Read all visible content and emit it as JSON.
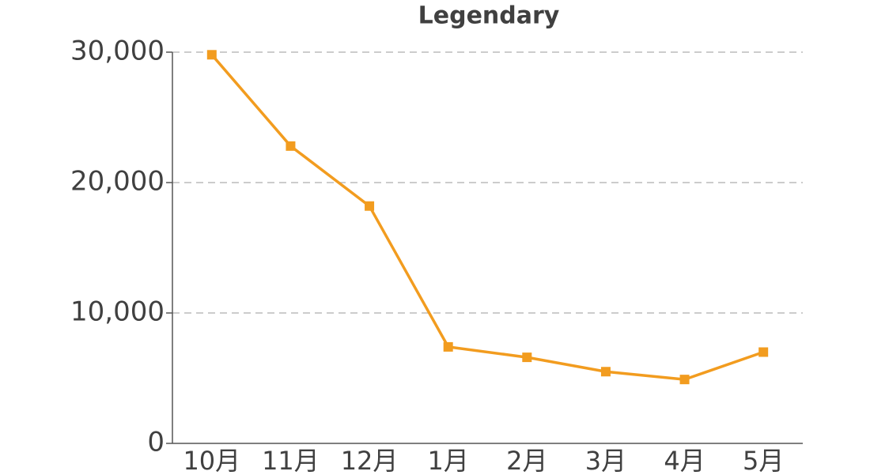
{
  "chart_data": {
    "type": "line",
    "title": "Legendary",
    "categories": [
      "10月",
      "11月",
      "12月",
      "1月",
      "2月",
      "3月",
      "4月",
      "5月"
    ],
    "values": [
      29800,
      22800,
      18200,
      7400,
      6600,
      5500,
      4900,
      7000
    ],
    "color": "#f29c1f",
    "ylim": [
      0,
      30000
    ],
    "yticks": [
      0,
      {
        "value": 10000,
        "label": "10,000"
      },
      {
        "value": 20000,
        "label": "20,000"
      },
      {
        "value": 30000,
        "label": "30,000"
      }
    ],
    "grid": true
  }
}
